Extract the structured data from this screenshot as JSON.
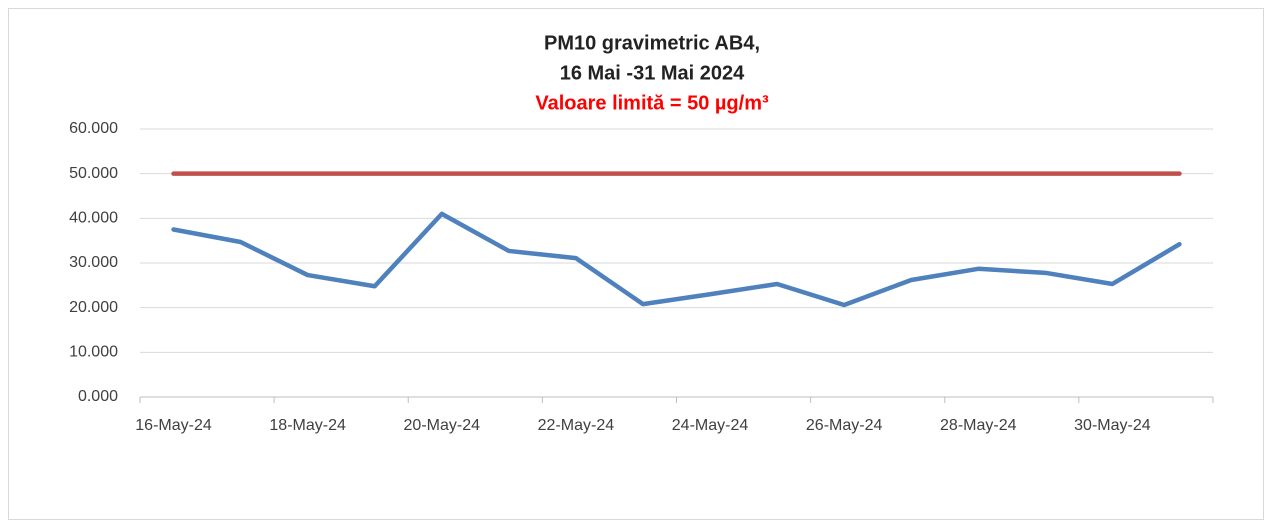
{
  "chart_data": {
    "type": "line",
    "title": [
      "PM10 gravimetric AB4,",
      "16 Mai  -31 Mai 2024"
    ],
    "subtitle": "Valoare limită = 50 µg/m³",
    "categories": [
      "16-May-24",
      null,
      "18-May-24",
      null,
      "20-May-24",
      null,
      "22-May-24",
      null,
      "24-May-24",
      null,
      "26-May-24",
      null,
      "28-May-24",
      null,
      "30-May-24",
      null
    ],
    "series": [
      {
        "color": "#4f81bd",
        "values": [
          37.5,
          34.7,
          27.3,
          24.8,
          41.0,
          32.7,
          31.1,
          20.8,
          23.0,
          25.3,
          20.6,
          26.2,
          28.7,
          27.8,
          25.3,
          34.2
        ]
      },
      {
        "color": "#c0504d",
        "values": [
          50,
          50,
          50,
          50,
          50,
          50,
          50,
          50,
          50,
          50,
          50,
          50,
          50,
          50,
          50,
          50
        ]
      }
    ],
    "ylim": [
      0,
      60
    ],
    "yticks": [
      {
        "value": 0,
        "label": "0.000"
      },
      {
        "value": 10,
        "label": "10.000"
      },
      {
        "value": 20,
        "label": "20.000"
      },
      {
        "value": 30,
        "label": "30.000"
      },
      {
        "value": 40,
        "label": "40.000"
      },
      {
        "value": 50,
        "label": "50.000"
      },
      {
        "value": 60,
        "label": "60.000"
      }
    ],
    "grid": true
  }
}
